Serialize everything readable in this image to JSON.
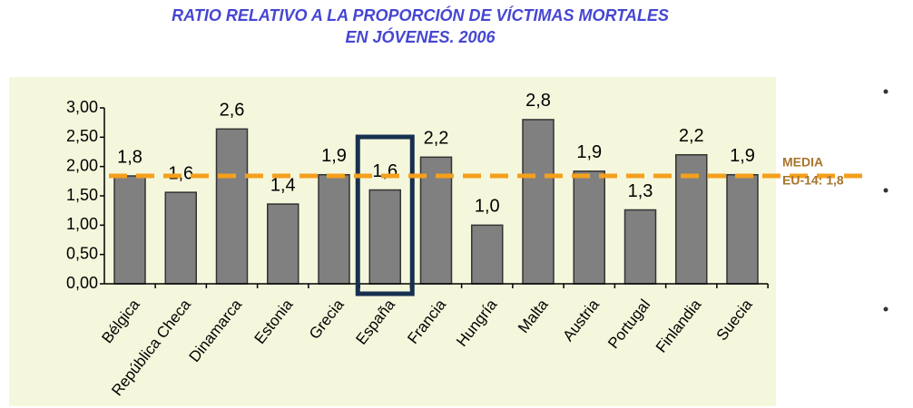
{
  "chart_data": {
    "type": "bar",
    "title": [
      "RATIO RELATIVO A LA PROPORCIÓN DE VÍCTIMAS MORTALES",
      "EN JÓVENES. 2006"
    ],
    "categories": [
      "Bélgica",
      "República Checa",
      "Dinamarca",
      "Estonia",
      "Grecia",
      "España",
      "Francia",
      "Hungría",
      "Malta",
      "Austria",
      "Portugal",
      "Finlandia",
      "Suecia"
    ],
    "values": [
      1.84,
      1.56,
      2.64,
      1.36,
      1.86,
      1.6,
      2.16,
      1.0,
      2.8,
      1.92,
      1.26,
      2.2,
      1.86
    ],
    "value_labels": [
      "1,8",
      "1,6",
      "2,6",
      "1,4",
      "1,9",
      "1,6",
      "2,2",
      "1,0",
      "2,8",
      "1,9",
      "1,3",
      "2,2",
      "1,9"
    ],
    "color": "#808080",
    "ylim": [
      0,
      3
    ],
    "yticks": [
      {
        "value": 0,
        "label": "0,00"
      },
      {
        "value": 0.5,
        "label": "0,50"
      },
      {
        "value": 1,
        "label": "1,00"
      },
      {
        "value": 1.5,
        "label": "1,50"
      },
      {
        "value": 2,
        "label": "2,00"
      },
      {
        "value": 2.5,
        "label": "2,50"
      },
      {
        "value": 3,
        "label": "3,00"
      }
    ],
    "average": 1.84,
    "average_color": "#f5a01e",
    "average_label": [
      "MEDIA",
      "EU-14: 1,8"
    ],
    "highlight_category": "España"
  }
}
